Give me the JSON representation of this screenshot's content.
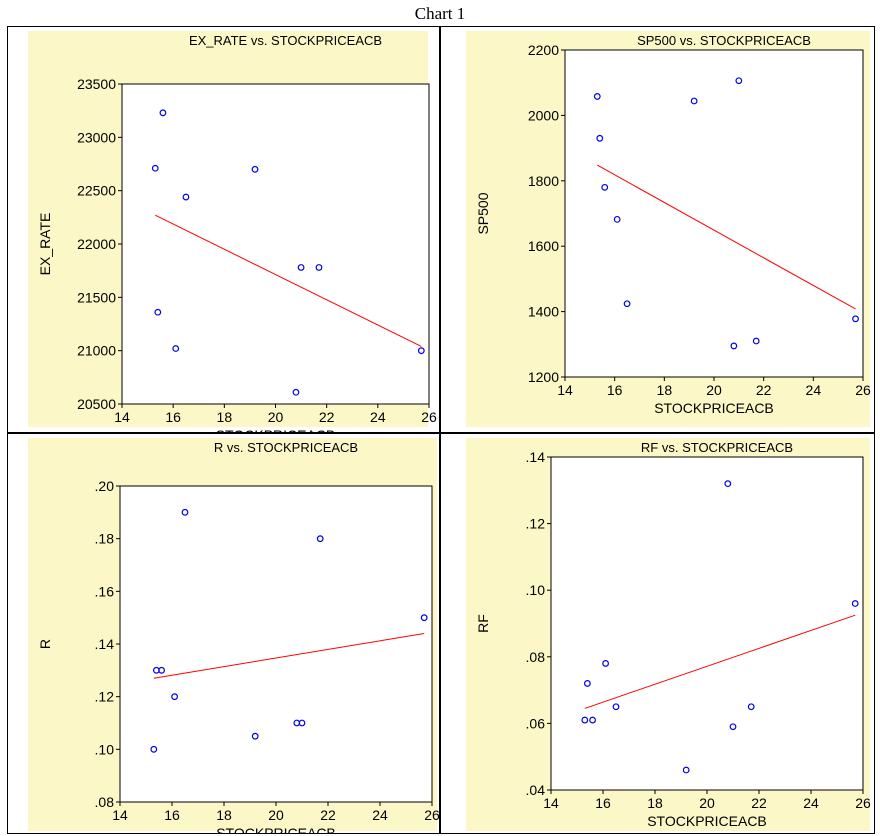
{
  "page": {
    "title": "Chart 1"
  },
  "colors": {
    "panel_bg": "#FBF7C6",
    "plot_bg": "#FFFFFF",
    "marker": "#0000EE",
    "fit_line": "#FF0000",
    "axis": "#000000"
  },
  "chart_data": [
    {
      "type": "scatter",
      "title": "EX_RATE vs. STOCKPRICEACB",
      "xlabel": "STOCKPRICEACB",
      "ylabel": "EX_RATE",
      "xlim": [
        14,
        26
      ],
      "ylim": [
        20500,
        23500
      ],
      "xticks": [
        "14",
        "16",
        "18",
        "20",
        "22",
        "24",
        "26"
      ],
      "yticks": [
        "20500",
        "21000",
        "21500",
        "22000",
        "22500",
        "23000",
        "23500"
      ],
      "x": [
        15.3,
        15.4,
        15.6,
        16.1,
        16.5,
        19.2,
        20.8,
        21.0,
        21.7,
        25.7
      ],
      "y": [
        22710,
        21360,
        23230,
        21020,
        22440,
        22700,
        20610,
        21780,
        21780,
        21000
      ],
      "fit": {
        "x": [
          15.3,
          25.7
        ],
        "y": [
          22270,
          21040
        ]
      }
    },
    {
      "type": "scatter",
      "title": "SP500 vs. STOCKPRICEACB",
      "xlabel": "STOCKPRICEACB",
      "ylabel": "SP500",
      "xlim": [
        14,
        26
      ],
      "ylim": [
        1200,
        2200
      ],
      "xticks": [
        "14",
        "16",
        "18",
        "20",
        "22",
        "24",
        "26"
      ],
      "yticks": [
        "1200",
        "1400",
        "1600",
        "1800",
        "2000",
        "2200"
      ],
      "x": [
        15.3,
        15.4,
        15.6,
        16.1,
        16.5,
        19.2,
        20.8,
        21.0,
        21.7,
        25.7
      ],
      "y": [
        2058,
        1930,
        1780,
        1682,
        1424,
        2044,
        1295,
        2106,
        1310,
        1378
      ],
      "fit": {
        "x": [
          15.3,
          25.7
        ],
        "y": [
          1848,
          1408
        ]
      }
    },
    {
      "type": "scatter",
      "title": "R vs. STOCKPRICEACB",
      "xlabel": "STOCKPRICEACB",
      "ylabel": "R",
      "xlim": [
        14,
        26
      ],
      "ylim": [
        0.08,
        0.2
      ],
      "xticks": [
        "14",
        "16",
        "18",
        "20",
        "22",
        "24",
        "26"
      ],
      "yticks": [
        ".08",
        ".10",
        ".12",
        ".14",
        ".16",
        ".18",
        ".20"
      ],
      "x": [
        15.3,
        15.4,
        15.6,
        16.1,
        16.5,
        19.2,
        20.8,
        21.0,
        21.7,
        25.7
      ],
      "y": [
        0.1,
        0.13,
        0.13,
        0.12,
        0.19,
        0.105,
        0.11,
        0.11,
        0.18,
        0.15
      ],
      "fit": {
        "x": [
          15.3,
          25.7
        ],
        "y": [
          0.127,
          0.144
        ]
      }
    },
    {
      "type": "scatter",
      "title": "RF vs. STOCKPRICEACB",
      "xlabel": "STOCKPRICEACB",
      "ylabel": "RF",
      "xlim": [
        14,
        26
      ],
      "ylim": [
        0.04,
        0.14
      ],
      "xticks": [
        "14",
        "16",
        "18",
        "20",
        "22",
        "24",
        "26"
      ],
      "yticks": [
        ".04",
        ".06",
        ".08",
        ".10",
        ".12",
        ".14"
      ],
      "x": [
        15.3,
        15.4,
        15.6,
        16.1,
        16.5,
        19.2,
        20.8,
        21.0,
        21.7,
        25.7
      ],
      "y": [
        0.061,
        0.072,
        0.061,
        0.078,
        0.065,
        0.046,
        0.132,
        0.059,
        0.065,
        0.096
      ],
      "fit": {
        "x": [
          15.3,
          25.7
        ],
        "y": [
          0.0645,
          0.0925
        ]
      }
    }
  ]
}
